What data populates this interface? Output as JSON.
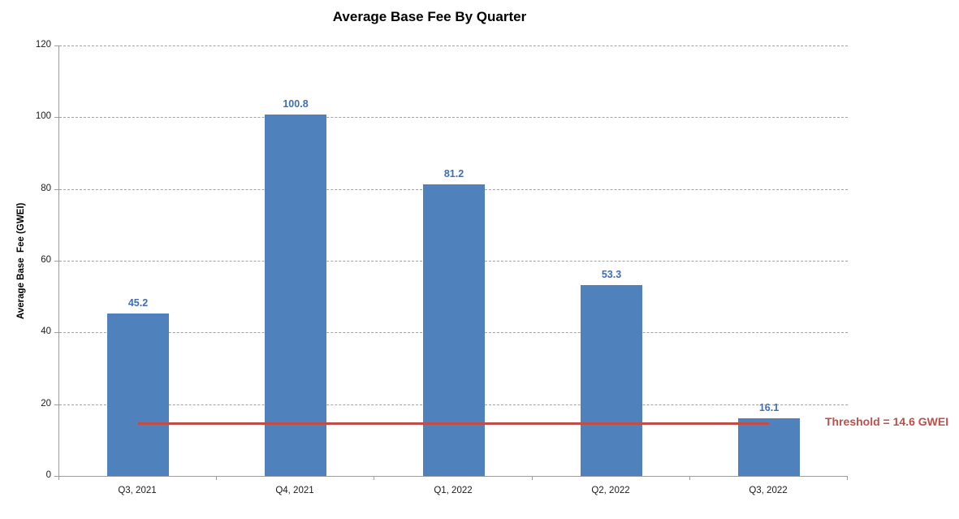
{
  "chart_data": {
    "type": "bar",
    "title": "Average Base Fee By Quarter",
    "ylabel": "Average Base  Fee (GWEI)",
    "xlabel": "",
    "categories": [
      "Q3, 2021",
      "Q4, 2021",
      "Q1, 2022",
      "Q2, 2022",
      "Q3, 2022"
    ],
    "values": [
      45.2,
      100.8,
      81.2,
      53.3,
      16.1
    ],
    "data_labels": [
      "45.2",
      "100.8",
      "81.2",
      "53.3",
      "16.1"
    ],
    "ylim": [
      0,
      120
    ],
    "yticks": [
      0,
      20,
      40,
      60,
      80,
      100,
      120
    ],
    "grid": "horizontal-dashed",
    "legend": "none",
    "threshold": {
      "value": 14.6,
      "label": "Threshold = 14.6 GWEI",
      "color": "#bf4e49"
    },
    "colors": {
      "bar_fill": "#4f81bd",
      "data_label": "#3f6eb5",
      "gridline": "#a3a3a3",
      "axis": "#9c9c9c",
      "title_text": "#000000"
    }
  }
}
